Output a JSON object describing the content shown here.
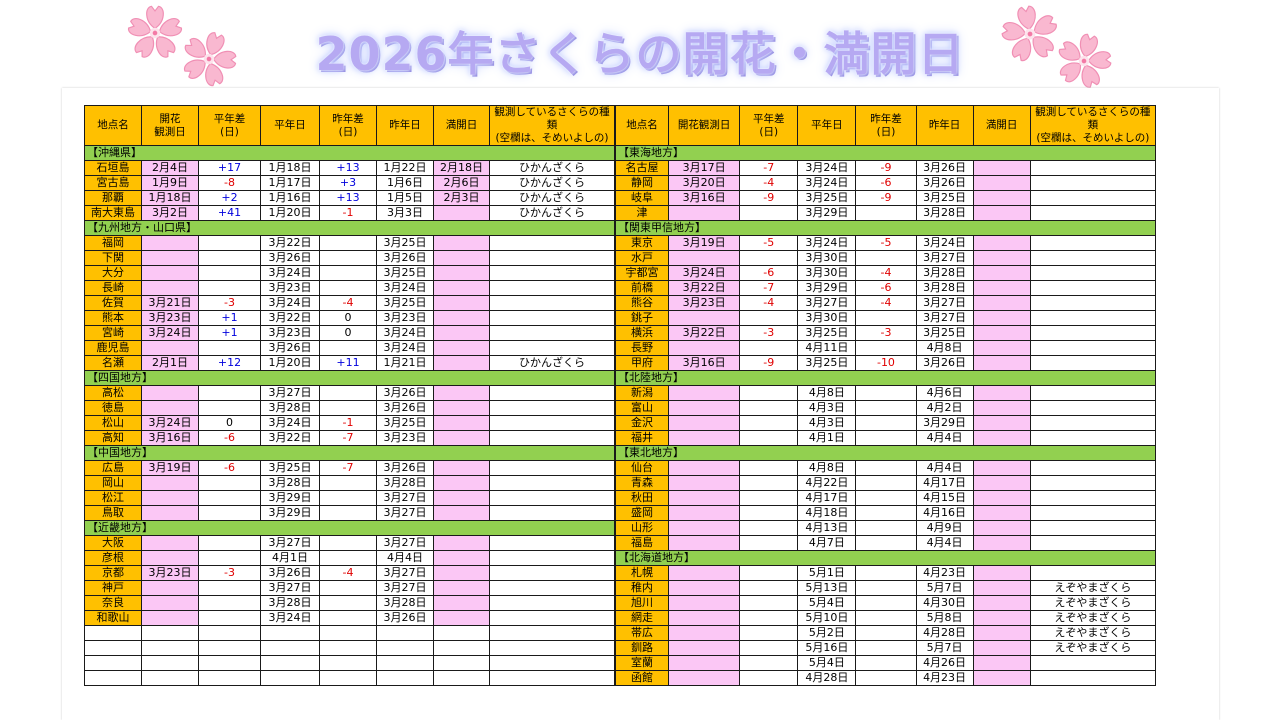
{
  "title": "2026年さくらの開花・満開日",
  "colors": {
    "header": "#ffc000",
    "region": "#92d050",
    "pink": "#fbc7f5",
    "plus": "#0000dd",
    "minus": "#e00000"
  },
  "headers_left": [
    "地点名",
    "開花\n観測日",
    "平年差\n(日)",
    "平年日",
    "昨年差\n(日)",
    "昨年日",
    "満開日",
    "観測しているさくらの種類\n(空欄は、そめいよしの)"
  ],
  "headers_right": [
    "地点名",
    "開花観測日",
    "平年差\n(日)",
    "平年日",
    "昨年差\n(日)",
    "昨年日",
    "満開日",
    "観測しているさくらの種類\n(空欄は、そめいよしの)"
  ],
  "left_rows": [
    {
      "region": "【沖縄県】"
    },
    {
      "c": [
        "石垣島",
        "2月4日",
        "+17",
        "1月18日",
        "+13",
        "1月22日",
        "2月18日",
        "ひかんざくら"
      ]
    },
    {
      "c": [
        "宮古島",
        "1月9日",
        "-8",
        "1月17日",
        "+3",
        "1月6日",
        "2月6日",
        "ひかんざくら"
      ]
    },
    {
      "c": [
        "那覇",
        "1月18日",
        "+2",
        "1月16日",
        "+13",
        "1月5日",
        "2月3日",
        "ひかんざくら"
      ]
    },
    {
      "c": [
        "南大東島",
        "3月2日",
        "+41",
        "1月20日",
        "-1",
        "3月3日",
        "",
        "ひかんざくら"
      ]
    },
    {
      "region": "【九州地方・山口県】"
    },
    {
      "c": [
        "福岡",
        "",
        "",
        "3月22日",
        "",
        "3月25日",
        "",
        ""
      ]
    },
    {
      "c": [
        "下関",
        "",
        "",
        "3月26日",
        "",
        "3月26日",
        "",
        ""
      ]
    },
    {
      "c": [
        "大分",
        "",
        "",
        "3月24日",
        "",
        "3月25日",
        "",
        ""
      ]
    },
    {
      "c": [
        "長崎",
        "",
        "",
        "3月23日",
        "",
        "3月24日",
        "",
        ""
      ]
    },
    {
      "c": [
        "佐賀",
        "3月21日",
        "-3",
        "3月24日",
        "-4",
        "3月25日",
        "",
        ""
      ]
    },
    {
      "c": [
        "熊本",
        "3月23日",
        "+1",
        "3月22日",
        "0",
        "3月23日",
        "",
        ""
      ]
    },
    {
      "c": [
        "宮崎",
        "3月24日",
        "+1",
        "3月23日",
        "0",
        "3月24日",
        "",
        ""
      ]
    },
    {
      "c": [
        "鹿児島",
        "",
        "",
        "3月26日",
        "",
        "3月24日",
        "",
        ""
      ]
    },
    {
      "c": [
        "名瀬",
        "2月1日",
        "+12",
        "1月20日",
        "+11",
        "1月21日",
        "",
        "ひかんざくら"
      ]
    },
    {
      "region": "【四国地方】"
    },
    {
      "c": [
        "高松",
        "",
        "",
        "3月27日",
        "",
        "3月26日",
        "",
        ""
      ]
    },
    {
      "c": [
        "徳島",
        "",
        "",
        "3月28日",
        "",
        "3月26日",
        "",
        ""
      ]
    },
    {
      "c": [
        "松山",
        "3月24日",
        "0",
        "3月24日",
        "-1",
        "3月25日",
        "",
        ""
      ]
    },
    {
      "c": [
        "高知",
        "3月16日",
        "-6",
        "3月22日",
        "-7",
        "3月23日",
        "",
        ""
      ]
    },
    {
      "region": "【中国地方】"
    },
    {
      "c": [
        "広島",
        "3月19日",
        "-6",
        "3月25日",
        "-7",
        "3月26日",
        "",
        ""
      ]
    },
    {
      "c": [
        "岡山",
        "",
        "",
        "3月28日",
        "",
        "3月28日",
        "",
        ""
      ]
    },
    {
      "c": [
        "松江",
        "",
        "",
        "3月29日",
        "",
        "3月27日",
        "",
        ""
      ]
    },
    {
      "c": [
        "鳥取",
        "",
        "",
        "3月29日",
        "",
        "3月27日",
        "",
        ""
      ]
    },
    {
      "region": "【近畿地方】"
    },
    {
      "c": [
        "大阪",
        "",
        "",
        "3月27日",
        "",
        "3月27日",
        "",
        ""
      ]
    },
    {
      "c": [
        "彦根",
        "",
        "",
        "4月1日",
        "",
        "4月4日",
        "",
        ""
      ]
    },
    {
      "c": [
        "京都",
        "3月23日",
        "-3",
        "3月26日",
        "-4",
        "3月27日",
        "",
        ""
      ]
    },
    {
      "c": [
        "神戸",
        "",
        "",
        "3月27日",
        "",
        "3月27日",
        "",
        ""
      ]
    },
    {
      "c": [
        "奈良",
        "",
        "",
        "3月28日",
        "",
        "3月28日",
        "",
        ""
      ]
    },
    {
      "c": [
        "和歌山",
        "",
        "",
        "3月24日",
        "",
        "3月26日",
        "",
        ""
      ]
    },
    {
      "c": [
        "",
        "",
        "",
        "",
        "",
        "",
        "",
        ""
      ],
      "blank": true
    },
    {
      "c": [
        "",
        "",
        "",
        "",
        "",
        "",
        "",
        ""
      ],
      "blank": true
    },
    {
      "c": [
        "",
        "",
        "",
        "",
        "",
        "",
        "",
        ""
      ],
      "blank": true
    },
    {
      "c": [
        "",
        "",
        "",
        "",
        "",
        "",
        "",
        ""
      ],
      "blank": true
    }
  ],
  "right_rows": [
    {
      "region": "【東海地方】"
    },
    {
      "c": [
        "名古屋",
        "3月17日",
        "-7",
        "3月24日",
        "-9",
        "3月26日",
        "",
        ""
      ]
    },
    {
      "c": [
        "静岡",
        "3月20日",
        "-4",
        "3月24日",
        "-6",
        "3月26日",
        "",
        ""
      ]
    },
    {
      "c": [
        "岐阜",
        "3月16日",
        "-9",
        "3月25日",
        "-9",
        "3月25日",
        "",
        ""
      ]
    },
    {
      "c": [
        "津",
        "",
        "",
        "3月29日",
        "",
        "3月28日",
        "",
        ""
      ]
    },
    {
      "region": "【関東甲信地方】"
    },
    {
      "c": [
        "東京",
        "3月19日",
        "-5",
        "3月24日",
        "-5",
        "3月24日",
        "",
        ""
      ]
    },
    {
      "c": [
        "水戸",
        "",
        "",
        "3月30日",
        "",
        "3月27日",
        "",
        ""
      ]
    },
    {
      "c": [
        "宇都宮",
        "3月24日",
        "-6",
        "3月30日",
        "-4",
        "3月28日",
        "",
        ""
      ]
    },
    {
      "c": [
        "前橋",
        "3月22日",
        "-7",
        "3月29日",
        "-6",
        "3月28日",
        "",
        ""
      ]
    },
    {
      "c": [
        "熊谷",
        "3月23日",
        "-4",
        "3月27日",
        "-4",
        "3月27日",
        "",
        ""
      ]
    },
    {
      "c": [
        "銚子",
        "",
        "",
        "3月30日",
        "",
        "3月27日",
        "",
        ""
      ]
    },
    {
      "c": [
        "横浜",
        "3月22日",
        "-3",
        "3月25日",
        "-3",
        "3月25日",
        "",
        ""
      ]
    },
    {
      "c": [
        "長野",
        "",
        "",
        "4月11日",
        "",
        "4月8日",
        "",
        ""
      ]
    },
    {
      "c": [
        "甲府",
        "3月16日",
        "-9",
        "3月25日",
        "-10",
        "3月26日",
        "",
        ""
      ]
    },
    {
      "region": "【北陸地方】"
    },
    {
      "c": [
        "新潟",
        "",
        "",
        "4月8日",
        "",
        "4月6日",
        "",
        ""
      ]
    },
    {
      "c": [
        "富山",
        "",
        "",
        "4月3日",
        "",
        "4月2日",
        "",
        ""
      ]
    },
    {
      "c": [
        "金沢",
        "",
        "",
        "4月3日",
        "",
        "3月29日",
        "",
        ""
      ]
    },
    {
      "c": [
        "福井",
        "",
        "",
        "4月1日",
        "",
        "4月4日",
        "",
        ""
      ]
    },
    {
      "region": "【東北地方】"
    },
    {
      "c": [
        "仙台",
        "",
        "",
        "4月8日",
        "",
        "4月4日",
        "",
        ""
      ]
    },
    {
      "c": [
        "青森",
        "",
        "",
        "4月22日",
        "",
        "4月17日",
        "",
        ""
      ]
    },
    {
      "c": [
        "秋田",
        "",
        "",
        "4月17日",
        "",
        "4月15日",
        "",
        ""
      ]
    },
    {
      "c": [
        "盛岡",
        "",
        "",
        "4月18日",
        "",
        "4月16日",
        "",
        ""
      ]
    },
    {
      "c": [
        "山形",
        "",
        "",
        "4月13日",
        "",
        "4月9日",
        "",
        ""
      ]
    },
    {
      "c": [
        "福島",
        "",
        "",
        "4月7日",
        "",
        "4月4日",
        "",
        ""
      ]
    },
    {
      "region": "【北海道地方】"
    },
    {
      "c": [
        "札幌",
        "",
        "",
        "5月1日",
        "",
        "4月23日",
        "",
        ""
      ]
    },
    {
      "c": [
        "稚内",
        "",
        "",
        "5月13日",
        "",
        "5月7日",
        "",
        "えぞやまざくら"
      ]
    },
    {
      "c": [
        "旭川",
        "",
        "",
        "5月4日",
        "",
        "4月30日",
        "",
        "えぞやまざくら"
      ]
    },
    {
      "c": [
        "網走",
        "",
        "",
        "5月10日",
        "",
        "5月8日",
        "",
        "えぞやまざくら"
      ]
    },
    {
      "c": [
        "帯広",
        "",
        "",
        "5月2日",
        "",
        "4月28日",
        "",
        "えぞやまざくら"
      ]
    },
    {
      "c": [
        "釧路",
        "",
        "",
        "5月16日",
        "",
        "5月7日",
        "",
        "えぞやまざくら"
      ]
    },
    {
      "c": [
        "室蘭",
        "",
        "",
        "5月4日",
        "",
        "4月26日",
        "",
        ""
      ]
    },
    {
      "c": [
        "函館",
        "",
        "",
        "4月28日",
        "",
        "4月23日",
        "",
        ""
      ]
    }
  ]
}
